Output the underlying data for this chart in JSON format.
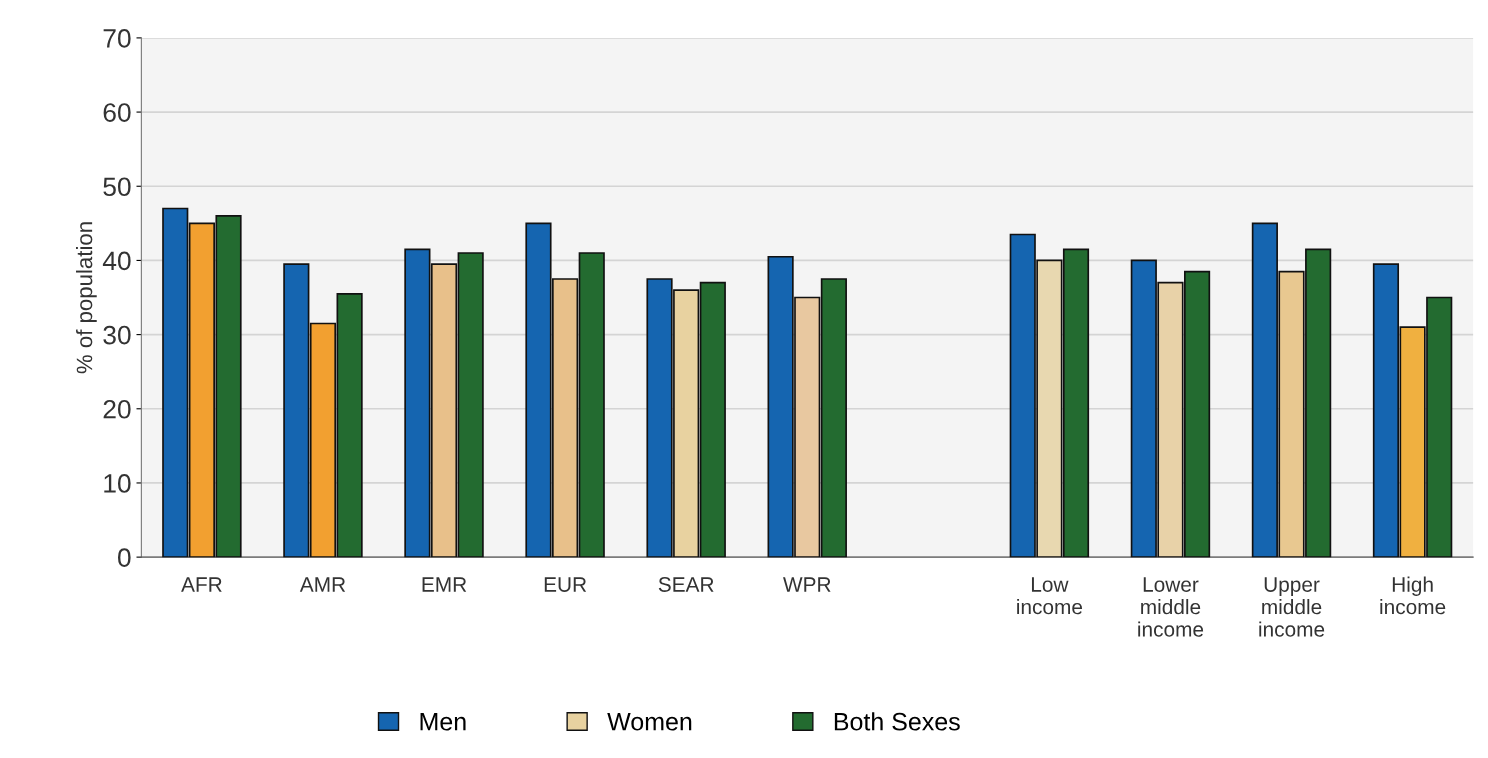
{
  "chart_data": {
    "type": "bar",
    "ylabel": "% of population",
    "categories": [
      "AFR",
      "AMR",
      "EMR",
      "EUR",
      "SEAR",
      "WPR",
      null,
      "Low income",
      "Lower middle income",
      "Upper middle income",
      "High income"
    ],
    "series": [
      {
        "name": "Men",
        "color": "#1565b0",
        "values": [
          47,
          39.5,
          41.5,
          45,
          37.5,
          40.5,
          null,
          43.5,
          40,
          45,
          39.5
        ]
      },
      {
        "name": "Women",
        "color": "#e8d2a0",
        "colors": [
          "#f2a030",
          "#f2a030",
          "#e8c08a",
          "#e8c08a",
          "#e8d2a0",
          "#e8c8a0",
          null,
          "#e8d8b0",
          "#e8d2a8",
          "#e8c890",
          "#f0b040"
        ],
        "values": [
          45,
          31.5,
          39.5,
          37.5,
          36,
          35,
          null,
          40,
          37,
          38.5,
          31
        ]
      },
      {
        "name": "Both Sexes",
        "color": "#236b30",
        "values": [
          46,
          35.5,
          41,
          41,
          37,
          37.5,
          null,
          41.5,
          38.5,
          41.5,
          35
        ]
      }
    ],
    "ylim": [
      0,
      70
    ],
    "yticks": [
      0,
      10,
      20,
      30,
      40,
      50,
      60,
      70
    ],
    "grid": "y",
    "legend": "bottom"
  }
}
